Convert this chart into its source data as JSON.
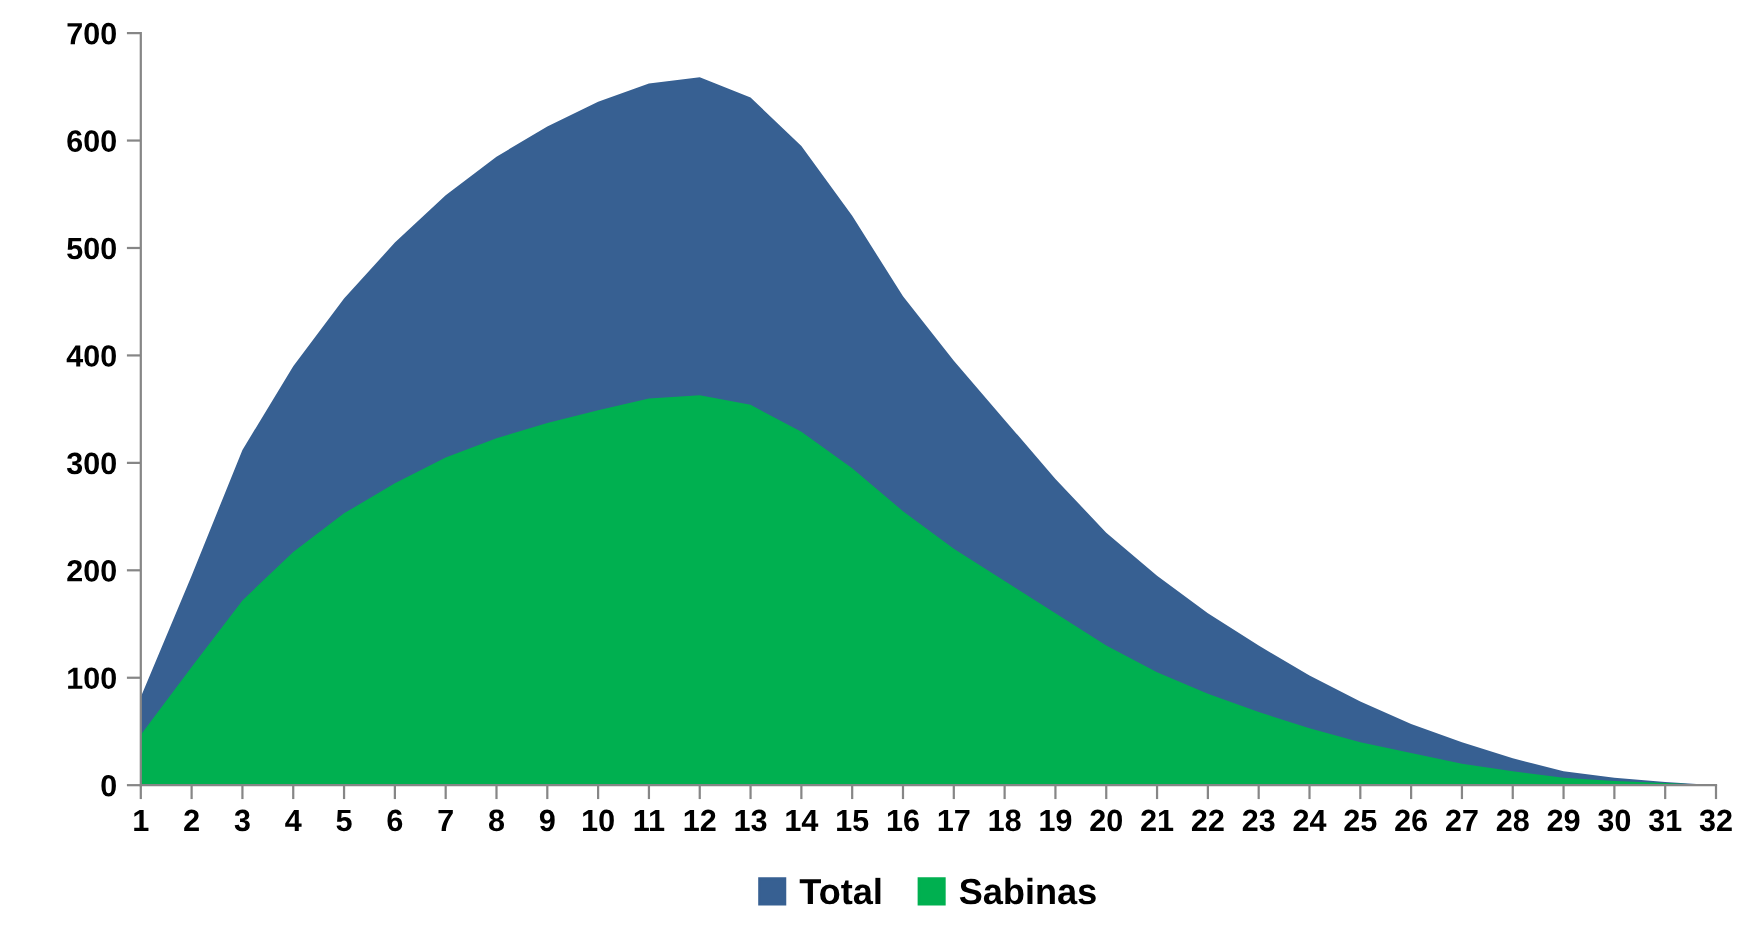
{
  "chart_data": {
    "type": "area",
    "categories": [
      "1",
      "2",
      "3",
      "4",
      "5",
      "6",
      "7",
      "8",
      "9",
      "10",
      "11",
      "12",
      "13",
      "14",
      "15",
      "16",
      "17",
      "18",
      "19",
      "20",
      "21",
      "22",
      "23",
      "24",
      "25",
      "26",
      "27",
      "28",
      "29",
      "30",
      "31",
      "32"
    ],
    "series": [
      {
        "name": "Total",
        "color": "#376092",
        "values": [
          82,
          195,
          312,
          390,
          453,
          505,
          549,
          585,
          613,
          636,
          653,
          659,
          640,
          595,
          530,
          455,
          395,
          340,
          285,
          235,
          195,
          160,
          130,
          102,
          78,
          57,
          40,
          25,
          13,
          7,
          3,
          0
        ]
      },
      {
        "name": "Sabinas",
        "color": "#00b050",
        "values": [
          47,
          110,
          172,
          217,
          253,
          281,
          305,
          323,
          337,
          349,
          360,
          363,
          354,
          329,
          295,
          255,
          220,
          190,
          160,
          130,
          105,
          85,
          68,
          53,
          40,
          30,
          20,
          13,
          7,
          4,
          2,
          0
        ]
      }
    ],
    "ylim": [
      0,
      700
    ],
    "yticks": [
      0,
      100,
      200,
      300,
      400,
      500,
      600,
      700
    ],
    "grid": false,
    "legend": "bottom"
  }
}
